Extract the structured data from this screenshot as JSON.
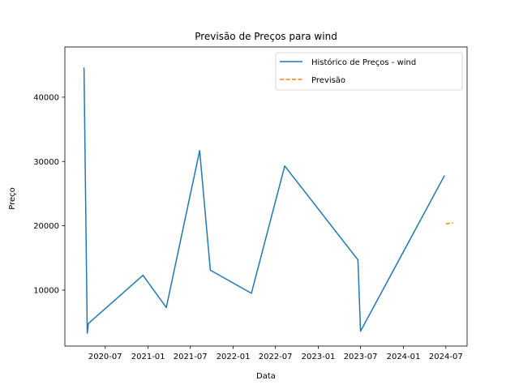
{
  "chart_data": {
    "type": "line",
    "title": "Previsão de Preços para wind",
    "xlabel": "Data",
    "ylabel": "Preço",
    "x_tick_labels": [
      "2020-07",
      "2021-01",
      "2021-07",
      "2022-01",
      "2022-07",
      "2023-01",
      "2023-07",
      "2024-01",
      "2024-07"
    ],
    "y_ticks": [
      10000,
      20000,
      30000,
      40000
    ],
    "xlim": [
      "2020-01-10",
      "2024-09-30"
    ],
    "ylim": [
      1300,
      47800
    ],
    "legend_position": "upper-right",
    "grid": false,
    "series": [
      {
        "name": "Histórico de Preços - wind",
        "color": "#1f77b4",
        "style": "solid",
        "x": [
          "2020-04-01",
          "2020-04-15",
          "2020-04-20",
          "2020-12-10",
          "2021-03-20",
          "2021-08-10",
          "2021-09-25",
          "2022-03-20",
          "2022-08-10",
          "2023-06-20",
          "2023-07-01",
          "2024-06-25"
        ],
        "y": [
          44600,
          3300,
          4800,
          12300,
          7300,
          31700,
          13100,
          9500,
          29300,
          14700,
          3600,
          27800
        ]
      },
      {
        "name": "Previsão",
        "color": "#ff7f0e",
        "style": "dashed",
        "x": [
          "2024-07-01",
          "2024-07-31"
        ],
        "y": [
          20300,
          20450
        ]
      }
    ]
  }
}
